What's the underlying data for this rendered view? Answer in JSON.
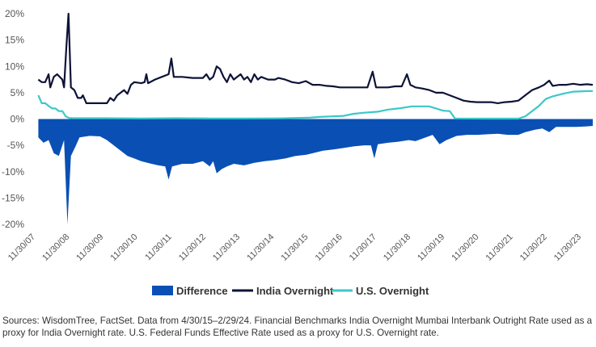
{
  "chart_data": {
    "type": "line",
    "title": "",
    "xlabel": "",
    "ylabel": "",
    "ylim": [
      -20,
      20
    ],
    "y_ticks": [
      "20%",
      "15%",
      "10%",
      "5%",
      "0%",
      "-5%",
      "-10%",
      "-15%",
      "-20%"
    ],
    "x_ticks": [
      "11/30/07",
      "11/30/08",
      "11/30/09",
      "11/30/10",
      "11/30/11",
      "11/30/12",
      "11/30/13",
      "11/30/14",
      "11/30/15",
      "11/30/16",
      "11/30/17",
      "11/30/18",
      "11/30/19",
      "11/30/20",
      "11/30/21",
      "11/30/22",
      "11/30/23"
    ],
    "legend_position": "bottom",
    "grid": false,
    "x_domain": [
      2007.92,
      2024.17
    ],
    "series": [
      {
        "name": "Difference",
        "style": "area",
        "color": "#0a50b4",
        "points": [
          [
            2008.0,
            -3.5
          ],
          [
            2008.15,
            -4.5
          ],
          [
            2008.3,
            -4.0
          ],
          [
            2008.45,
            -6.5
          ],
          [
            2008.6,
            -7.0
          ],
          [
            2008.75,
            -4.0
          ],
          [
            2008.85,
            -20.0
          ],
          [
            2008.95,
            -7.0
          ],
          [
            2009.1,
            -5.0
          ],
          [
            2009.2,
            -3.5
          ],
          [
            2009.5,
            -3.2
          ],
          [
            2009.8,
            -3.3
          ],
          [
            2010.0,
            -4.0
          ],
          [
            2010.2,
            -5.0
          ],
          [
            2010.4,
            -6.0
          ],
          [
            2010.6,
            -7.0
          ],
          [
            2010.8,
            -7.5
          ],
          [
            2011.0,
            -8.0
          ],
          [
            2011.3,
            -8.5
          ],
          [
            2011.5,
            -8.8
          ],
          [
            2011.7,
            -9.0
          ],
          [
            2011.8,
            -11.5
          ],
          [
            2011.9,
            -9.0
          ],
          [
            2012.2,
            -8.5
          ],
          [
            2012.5,
            -8.5
          ],
          [
            2012.8,
            -8.0
          ],
          [
            2013.0,
            -9.0
          ],
          [
            2013.1,
            -8.0
          ],
          [
            2013.2,
            -10.3
          ],
          [
            2013.35,
            -9.5
          ],
          [
            2013.5,
            -9.0
          ],
          [
            2013.7,
            -8.5
          ],
          [
            2014.0,
            -8.8
          ],
          [
            2014.3,
            -8.3
          ],
          [
            2014.6,
            -8.0
          ],
          [
            2014.9,
            -7.8
          ],
          [
            2015.2,
            -7.5
          ],
          [
            2015.5,
            -7.0
          ],
          [
            2015.8,
            -6.8
          ],
          [
            2016.0,
            -6.5
          ],
          [
            2016.3,
            -6.0
          ],
          [
            2016.6,
            -5.8
          ],
          [
            2016.9,
            -5.5
          ],
          [
            2017.2,
            -5.2
          ],
          [
            2017.5,
            -5.0
          ],
          [
            2017.7,
            -5.0
          ],
          [
            2017.8,
            -7.5
          ],
          [
            2017.9,
            -4.8
          ],
          [
            2018.2,
            -4.5
          ],
          [
            2018.5,
            -4.3
          ],
          [
            2018.8,
            -4.0
          ],
          [
            2019.0,
            -4.2
          ],
          [
            2019.3,
            -3.5
          ],
          [
            2019.5,
            -3.0
          ],
          [
            2019.7,
            -4.8
          ],
          [
            2019.9,
            -4.0
          ],
          [
            2020.2,
            -3.2
          ],
          [
            2020.5,
            -3.0
          ],
          [
            2020.8,
            -3.0
          ],
          [
            2021.1,
            -2.9
          ],
          [
            2021.4,
            -2.8
          ],
          [
            2021.7,
            -3.0
          ],
          [
            2022.0,
            -3.0
          ],
          [
            2022.2,
            -2.5
          ],
          [
            2022.5,
            -2.0
          ],
          [
            2022.7,
            -1.8
          ],
          [
            2022.9,
            -2.5
          ],
          [
            2023.1,
            -1.5
          ],
          [
            2023.4,
            -1.5
          ],
          [
            2023.7,
            -1.5
          ],
          [
            2024.0,
            -1.4
          ],
          [
            2024.17,
            -1.3
          ]
        ]
      },
      {
        "name": "India Overnight",
        "style": "line",
        "color": "#0d1336",
        "points": [
          [
            2008.0,
            7.5
          ],
          [
            2008.1,
            7.0
          ],
          [
            2008.2,
            7.0
          ],
          [
            2008.3,
            8.5
          ],
          [
            2008.35,
            6.0
          ],
          [
            2008.45,
            8.0
          ],
          [
            2008.55,
            8.5
          ],
          [
            2008.7,
            7.5
          ],
          [
            2008.75,
            6.0
          ],
          [
            2008.82,
            14.0
          ],
          [
            2008.88,
            20.0
          ],
          [
            2008.95,
            6.0
          ],
          [
            2009.05,
            5.5
          ],
          [
            2009.15,
            4.0
          ],
          [
            2009.25,
            4.0
          ],
          [
            2009.3,
            4.5
          ],
          [
            2009.4,
            3.0
          ],
          [
            2009.6,
            3.0
          ],
          [
            2009.8,
            3.0
          ],
          [
            2010.0,
            3.0
          ],
          [
            2010.1,
            4.0
          ],
          [
            2010.2,
            3.5
          ],
          [
            2010.3,
            4.5
          ],
          [
            2010.4,
            5.0
          ],
          [
            2010.5,
            5.5
          ],
          [
            2010.6,
            4.8
          ],
          [
            2010.7,
            6.5
          ],
          [
            2010.8,
            7.0
          ],
          [
            2011.0,
            6.8
          ],
          [
            2011.1,
            7.0
          ],
          [
            2011.15,
            8.5
          ],
          [
            2011.2,
            6.8
          ],
          [
            2011.4,
            7.5
          ],
          [
            2011.6,
            8.0
          ],
          [
            2011.8,
            8.5
          ],
          [
            2011.88,
            11.5
          ],
          [
            2011.95,
            8.0
          ],
          [
            2012.2,
            8.0
          ],
          [
            2012.5,
            7.8
          ],
          [
            2012.8,
            7.8
          ],
          [
            2012.9,
            8.5
          ],
          [
            2013.0,
            7.5
          ],
          [
            2013.1,
            8.0
          ],
          [
            2013.2,
            10.0
          ],
          [
            2013.3,
            9.5
          ],
          [
            2013.4,
            8.0
          ],
          [
            2013.5,
            7.0
          ],
          [
            2013.6,
            8.5
          ],
          [
            2013.7,
            7.5
          ],
          [
            2013.8,
            8.0
          ],
          [
            2013.9,
            8.5
          ],
          [
            2014.0,
            7.5
          ],
          [
            2014.1,
            8.0
          ],
          [
            2014.2,
            7.0
          ],
          [
            2014.3,
            8.5
          ],
          [
            2014.4,
            7.5
          ],
          [
            2014.5,
            8.0
          ],
          [
            2014.7,
            7.5
          ],
          [
            2014.9,
            7.5
          ],
          [
            2015.0,
            7.8
          ],
          [
            2015.2,
            7.5
          ],
          [
            2015.4,
            7.0
          ],
          [
            2015.6,
            6.8
          ],
          [
            2015.8,
            7.2
          ],
          [
            2016.0,
            6.5
          ],
          [
            2016.2,
            6.5
          ],
          [
            2016.4,
            6.3
          ],
          [
            2016.6,
            6.2
          ],
          [
            2016.8,
            6.0
          ],
          [
            2017.0,
            6.0
          ],
          [
            2017.2,
            6.0
          ],
          [
            2017.4,
            6.0
          ],
          [
            2017.6,
            6.0
          ],
          [
            2017.75,
            9.0
          ],
          [
            2017.85,
            6.0
          ],
          [
            2018.0,
            6.0
          ],
          [
            2018.2,
            6.0
          ],
          [
            2018.4,
            6.2
          ],
          [
            2018.6,
            6.2
          ],
          [
            2018.75,
            8.5
          ],
          [
            2018.85,
            6.5
          ],
          [
            2019.0,
            6.0
          ],
          [
            2019.2,
            5.8
          ],
          [
            2019.4,
            5.5
          ],
          [
            2019.6,
            5.0
          ],
          [
            2019.8,
            5.0
          ],
          [
            2020.0,
            4.5
          ],
          [
            2020.2,
            4.0
          ],
          [
            2020.4,
            3.5
          ],
          [
            2020.6,
            3.3
          ],
          [
            2020.8,
            3.2
          ],
          [
            2021.0,
            3.2
          ],
          [
            2021.2,
            3.2
          ],
          [
            2021.4,
            3.0
          ],
          [
            2021.6,
            3.2
          ],
          [
            2021.8,
            3.3
          ],
          [
            2022.0,
            3.5
          ],
          [
            2022.2,
            4.5
          ],
          [
            2022.4,
            5.5
          ],
          [
            2022.6,
            6.0
          ],
          [
            2022.75,
            6.5
          ],
          [
            2022.9,
            7.3
          ],
          [
            2023.0,
            6.3
          ],
          [
            2023.2,
            6.5
          ],
          [
            2023.4,
            6.5
          ],
          [
            2023.6,
            6.7
          ],
          [
            2023.8,
            6.5
          ],
          [
            2024.0,
            6.6
          ],
          [
            2024.17,
            6.5
          ]
        ]
      },
      {
        "name": "U.S. Overnight",
        "style": "line",
        "color": "#3cc8c8",
        "points": [
          [
            2008.0,
            4.5
          ],
          [
            2008.1,
            3.0
          ],
          [
            2008.2,
            3.0
          ],
          [
            2008.3,
            2.5
          ],
          [
            2008.4,
            2.0
          ],
          [
            2008.5,
            2.0
          ],
          [
            2008.6,
            1.5
          ],
          [
            2008.7,
            1.5
          ],
          [
            2008.8,
            0.5
          ],
          [
            2008.9,
            0.2
          ],
          [
            2009.0,
            0.15
          ],
          [
            2010.0,
            0.15
          ],
          [
            2011.0,
            0.1
          ],
          [
            2012.0,
            0.15
          ],
          [
            2013.0,
            0.1
          ],
          [
            2014.0,
            0.1
          ],
          [
            2015.0,
            0.12
          ],
          [
            2015.9,
            0.25
          ],
          [
            2016.2,
            0.4
          ],
          [
            2016.9,
            0.6
          ],
          [
            2017.2,
            1.0
          ],
          [
            2017.5,
            1.2
          ],
          [
            2017.9,
            1.4
          ],
          [
            2018.2,
            1.8
          ],
          [
            2018.5,
            2.0
          ],
          [
            2018.9,
            2.4
          ],
          [
            2019.4,
            2.4
          ],
          [
            2019.6,
            2.0
          ],
          [
            2019.8,
            1.6
          ],
          [
            2020.0,
            1.5
          ],
          [
            2020.15,
            0.1
          ],
          [
            2021.0,
            0.08
          ],
          [
            2022.0,
            0.08
          ],
          [
            2022.2,
            0.5
          ],
          [
            2022.4,
            1.5
          ],
          [
            2022.6,
            2.5
          ],
          [
            2022.8,
            3.8
          ],
          [
            2023.0,
            4.3
          ],
          [
            2023.3,
            4.8
          ],
          [
            2023.6,
            5.2
          ],
          [
            2024.0,
            5.3
          ],
          [
            2024.17,
            5.3
          ]
        ]
      }
    ]
  },
  "source_note": "Sources: WisdomTree, FactSet. Data from 4/30/15–2/29/24. Financial Benchmarks India Overnight Mumbai Interbank Outright Rate used as a proxy for India Overnight rate. U.S. Federal Funds Effective Rate used as a proxy for U.S. Overnight rate."
}
